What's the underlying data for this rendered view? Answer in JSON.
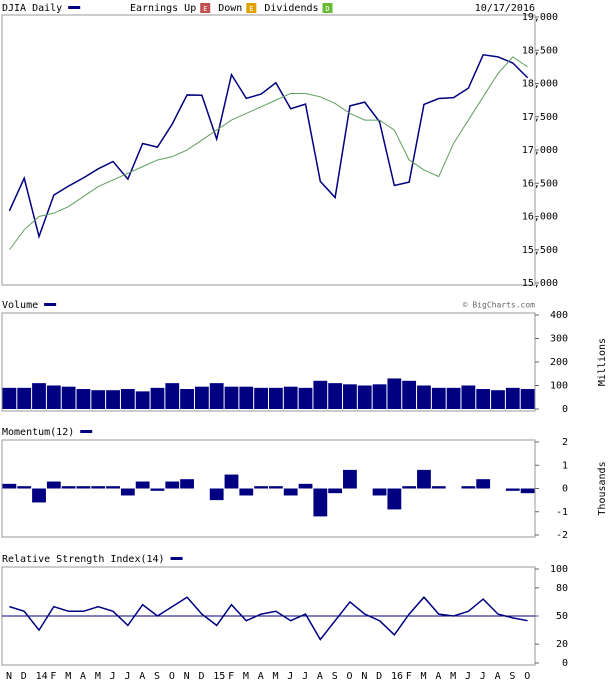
{
  "chart_data": [
    {
      "type": "line",
      "date": "10/17/2016",
      "legend": [
        {
          "label": "Earnings Up",
          "icon": "E",
          "color": "#c0504d"
        },
        {
          "label": "Down",
          "icon": "E",
          "color": "#e0a000"
        },
        {
          "label": "Dividends",
          "icon": "D",
          "color": "#66bb33"
        }
      ],
      "series": [
        {
          "name": "DJIA Daily",
          "color": "#000080",
          "values": [
            16086,
            16577,
            15699,
            16321,
            16458,
            16581,
            16717,
            16827,
            16563,
            17098,
            17043,
            17391,
            17828,
            17823,
            17165,
            18133,
            17776,
            17841,
            18011,
            17620,
            17690,
            16528,
            16285,
            17664,
            17720,
            17425,
            16466,
            16517,
            17685,
            17774,
            17787,
            17930,
            18432,
            18401,
            18308,
            18086
          ]
        },
        {
          "color": "#5f9f5f",
          "values": [
            15500,
            15800,
            16000,
            16050,
            16150,
            16300,
            16450,
            16550,
            16650,
            16750,
            16850,
            16900,
            17000,
            17150,
            17300,
            17450,
            17550,
            17650,
            17750,
            17850,
            17850,
            17800,
            17700,
            17550,
            17450,
            17450,
            17300,
            16850,
            16700,
            16600,
            17100,
            17450,
            17800,
            18150,
            18400,
            18250
          ]
        }
      ],
      "ylim": [
        15000,
        19000
      ],
      "yticks": [
        {
          "value": 15000,
          "label": "15,000"
        },
        {
          "value": 15500,
          "label": "15,500"
        },
        {
          "value": 16000,
          "label": "16,000"
        },
        {
          "value": 16500,
          "label": "16,500"
        },
        {
          "value": 17000,
          "label": "17,000"
        },
        {
          "value": 17500,
          "label": "17,500"
        },
        {
          "value": 18000,
          "label": "18,000"
        },
        {
          "value": 18500,
          "label": "18,500"
        },
        {
          "value": 19000,
          "label": "19,000"
        }
      ]
    },
    {
      "type": "bar",
      "credit": "© BigCharts.com",
      "ylabel": "Millions",
      "series": [
        {
          "name": "Volume",
          "color": "#000080",
          "values": [
            90,
            90,
            110,
            100,
            95,
            85,
            80,
            80,
            85,
            75,
            90,
            110,
            85,
            95,
            110,
            95,
            95,
            90,
            90,
            95,
            90,
            120,
            110,
            105,
            100,
            105,
            130,
            120,
            100,
            90,
            90,
            100,
            85,
            80,
            90,
            85
          ]
        }
      ],
      "ylim": [
        0,
        400
      ],
      "yticks": [
        0,
        100,
        200,
        300,
        400
      ]
    },
    {
      "type": "bar",
      "ylabel": "Thousands",
      "series": [
        {
          "name": "Momentum(12)",
          "color": "#000080",
          "values": [
            0.2,
            0.1,
            -0.6,
            0.3,
            0.1,
            0.1,
            0.1,
            0.1,
            -0.3,
            0.3,
            -0.1,
            0.3,
            0.4,
            0,
            -0.5,
            0.6,
            -0.3,
            0.1,
            0.1,
            -0.3,
            0.2,
            -1.2,
            -0.2,
            0.8,
            0,
            -0.3,
            -0.9,
            0.1,
            0.8,
            0.1,
            0,
            0.1,
            0.4,
            0,
            -0.1,
            -0.2
          ]
        }
      ],
      "ylim": [
        -2,
        2
      ],
      "yticks": [
        -2,
        -1,
        0,
        1,
        2
      ]
    },
    {
      "type": "line",
      "hline": 50,
      "series": [
        {
          "name": "Relative Strength Index(14)",
          "color": "#000080",
          "values": [
            60,
            55,
            35,
            60,
            55,
            55,
            60,
            55,
            40,
            62,
            50,
            60,
            70,
            52,
            40,
            62,
            45,
            52,
            55,
            45,
            52,
            25,
            45,
            65,
            52,
            45,
            30,
            52,
            70,
            52,
            50,
            55,
            68,
            52,
            48,
            45
          ]
        }
      ],
      "ylim": [
        0,
        100
      ],
      "yticks": [
        0,
        20,
        50,
        80,
        100
      ],
      "categories": [
        "N",
        "D",
        "14",
        "F",
        "M",
        "A",
        "M",
        "J",
        "J",
        "A",
        "S",
        "O",
        "N",
        "D",
        "15",
        "F",
        "M",
        "A",
        "M",
        "J",
        "J",
        "A",
        "S",
        "O",
        "N",
        "D",
        "16",
        "F",
        "M",
        "A",
        "M",
        "J",
        "J",
        "A",
        "S",
        "O"
      ]
    }
  ]
}
